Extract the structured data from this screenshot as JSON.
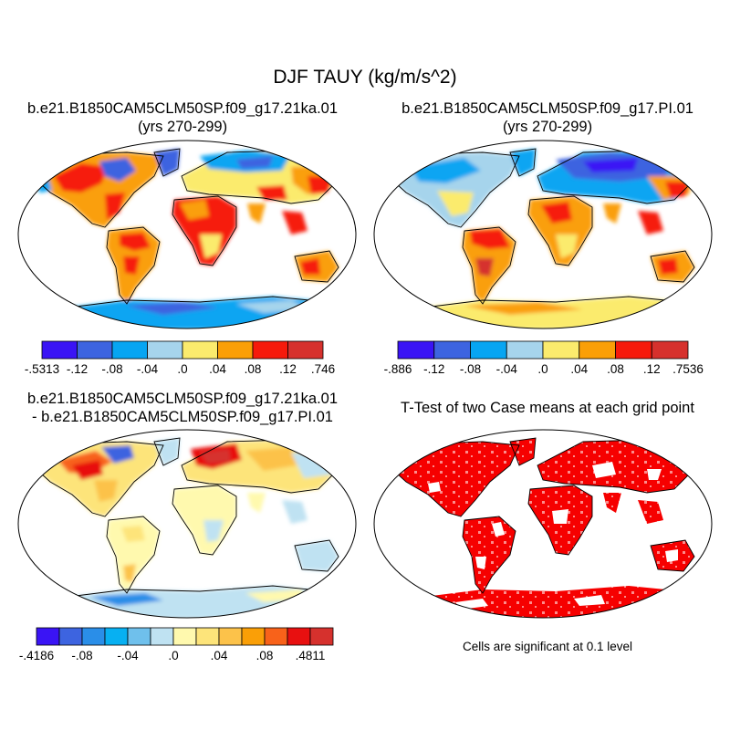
{
  "figure_title": "DJF TAUY (kg/m/s^2)",
  "panels": [
    {
      "id": "p1",
      "title_line1": "b.e21.B1850CAM5CLM50SP.f09_g17.21ka.01",
      "title_line2": "(yrs 270-299)"
    },
    {
      "id": "p2",
      "title_line1": "b.e21.B1850CAM5CLM50SP.f09_g17.PI.01",
      "title_line2": "(yrs 270-299)"
    },
    {
      "id": "p3",
      "title_line1": "b.e21.B1850CAM5CLM50SP.f09_g17.21ka.01",
      "title_line2": "- b.e21.B1850CAM5CLM50SP.f09_g17.PI.01"
    },
    {
      "id": "p4",
      "title_line1": "T-Test of two Case means at each grid point",
      "title_line2": ""
    }
  ],
  "colorbars": [
    {
      "id": "cb1",
      "colors": [
        "#3a14f5",
        "#3d64e0",
        "#07a5f2",
        "#a6d4ec",
        "#fbeb6d",
        "#fa9f07",
        "#f61a0b",
        "#d6312d"
      ],
      "labels": [
        "-.5313",
        "-.12",
        "-.08",
        "-.04",
        ".0",
        ".04",
        ".08",
        ".12",
        ".746"
      ]
    },
    {
      "id": "cb2",
      "colors": [
        "#3a14f5",
        "#3d64e0",
        "#07a5f2",
        "#a6d4ec",
        "#fbeb6d",
        "#fa9f07",
        "#f61a0b",
        "#d6312d"
      ],
      "labels": [
        "-.886",
        "-.12",
        "-.08",
        "-.04",
        ".0",
        ".04",
        ".08",
        ".12",
        ".7536"
      ]
    },
    {
      "id": "cb3",
      "colors": [
        "#3a14f5",
        "#3d64e0",
        "#2a8ee8",
        "#07b0f2",
        "#6fc0ec",
        "#bfe2f2",
        "#fff9ae",
        "#fde47a",
        "#fcc24a",
        "#fa9f07",
        "#f8621a",
        "#e81010",
        "#d6312d"
      ],
      "labels": [
        "-.4186",
        "",
        "-.08",
        "",
        "-.04",
        "",
        ".0",
        "",
        ".04",
        "",
        ".08",
        "",
        ".4811"
      ]
    }
  ],
  "significance_note": "Cells are significant at 0.1 level"
}
